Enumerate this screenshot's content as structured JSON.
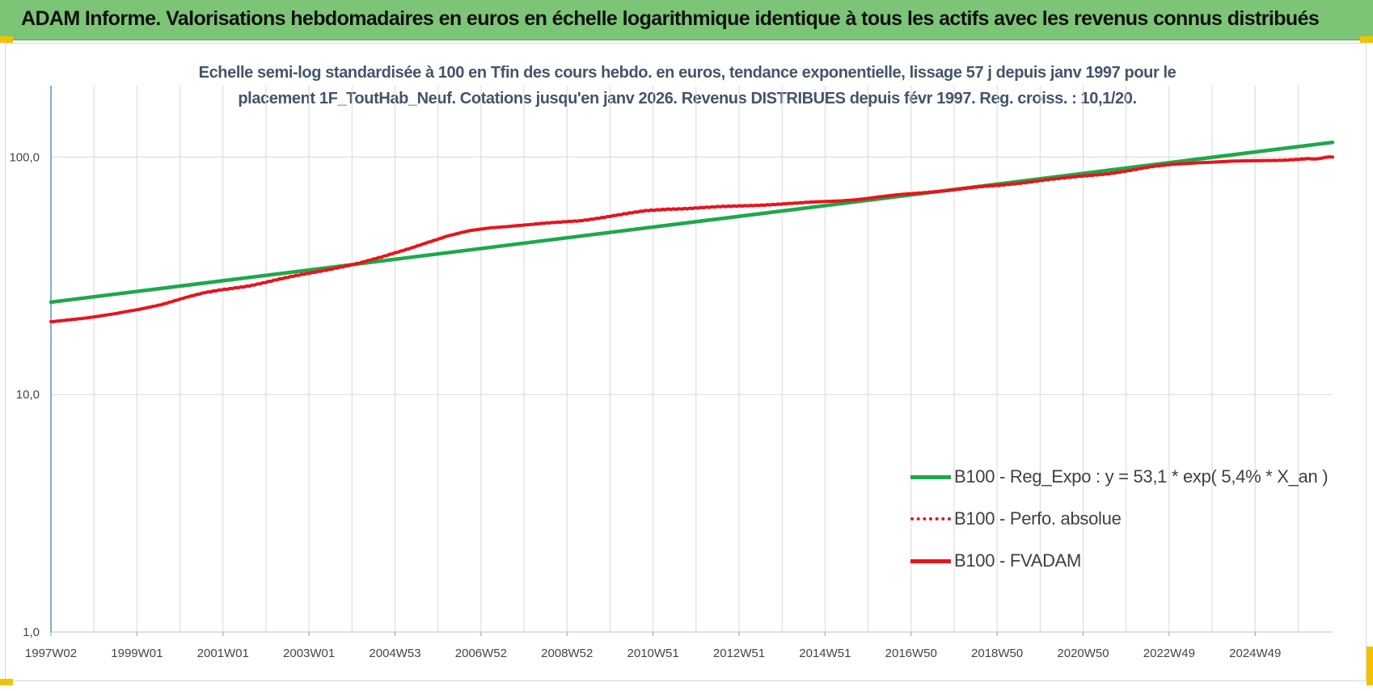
{
  "banner": {
    "title": "ADAM Informe. Valorisations hebdomadaires en euros en échelle logarithmique identique à tous les actifs avec les revenus connus distribués"
  },
  "colors": {
    "banner_bg": "#7cc576",
    "green_series": "#1ea84a",
    "red_series": "#e8141c",
    "corner_accent": "#f2c200",
    "subtitle_text": "#44546a"
  },
  "chart_data": {
    "type": "line",
    "title_line1": "Echelle semi-log standardisée à 100 en Tfin des cours hebdo. en euros, tendance exponentielle, lissage 57 j depuis janv 1997 pour le",
    "title_line2": "placement 1F_ToutHab_Neuf. Cotations jusqu'en janv 2026. Revenus DISTRIBUES depuis févr 1997. Reg. croiss. : 10,1/20.",
    "y_scale": "log",
    "ylim": [
      1,
      200
    ],
    "y_ticks": [
      {
        "value": 1,
        "label": "1,0"
      },
      {
        "value": 10,
        "label": "10,0"
      },
      {
        "value": 100,
        "label": "100,0"
      }
    ],
    "x_range": [
      1997.0,
      2026.08
    ],
    "x_tick_labels": [
      "1997W02",
      "1999W01",
      "2001W01",
      "2003W01",
      "2004W53",
      "2006W52",
      "2008W52",
      "2010W51",
      "2012W51",
      "2014W51",
      "2016W50",
      "2018W50",
      "2020W50",
      "2022W49",
      "2024W49"
    ],
    "grid": "vertical and horizontal",
    "legend_position": "bottom-right",
    "series": [
      {
        "name": "B100 - Reg_Expo : y = 53,1 * exp( 5,4% *  X_an )",
        "style": "solid",
        "color": "#1ea84a",
        "x": [
          1997.0,
          2026.08
        ],
        "y": [
          24.5,
          115.5
        ]
      },
      {
        "name": "B100 - Perfo. absolue",
        "style": "dotted",
        "color": "#e8141c",
        "x": [],
        "y": []
      },
      {
        "name": "B100 - FVADAM",
        "style": "solid",
        "color": "#e8141c",
        "x": [
          1997.0,
          1997.5,
          1998.0,
          1998.5,
          1999.0,
          1999.5,
          2000.0,
          2000.5,
          2001.0,
          2001.5,
          2002.0,
          2002.5,
          2003.0,
          2003.5,
          2004.0,
          2004.5,
          2005.0,
          2005.5,
          2006.0,
          2006.5,
          2007.0,
          2007.5,
          2008.0,
          2008.5,
          2009.0,
          2009.5,
          2010.0,
          2010.5,
          2011.0,
          2011.5,
          2012.0,
          2012.5,
          2013.0,
          2013.5,
          2014.0,
          2014.5,
          2015.0,
          2015.5,
          2016.0,
          2016.5,
          2017.0,
          2017.5,
          2018.0,
          2018.5,
          2019.0,
          2019.5,
          2020.0,
          2020.5,
          2021.0,
          2021.5,
          2022.0,
          2022.5,
          2023.0,
          2023.5,
          2024.0,
          2024.5,
          2025.0,
          2025.5,
          2026.08
        ],
        "y": [
          20.2,
          20.8,
          21.3,
          21.9,
          22.8,
          24.0,
          25.5,
          26.8,
          27.8,
          28.8,
          30.1,
          31.4,
          32.8,
          34.3,
          35.8,
          37.8,
          40.5,
          43.6,
          46.5,
          48.8,
          50.5,
          51.5,
          52.2,
          53.0,
          54.0,
          55.8,
          57.5,
          59.3,
          60.5,
          61.0,
          61.5,
          62.0,
          62.8,
          63.5,
          64.0,
          64.8,
          65.8,
          67.0,
          68.5,
          70.0,
          71.6,
          73.0,
          74.5,
          76.0,
          78.0,
          80.0,
          81.5,
          83.5,
          85.5,
          88.0,
          91.0,
          93.5,
          95.0,
          95.5,
          96.0,
          96.8,
          97.5,
          98.3,
          100.0
        ]
      }
    ]
  }
}
